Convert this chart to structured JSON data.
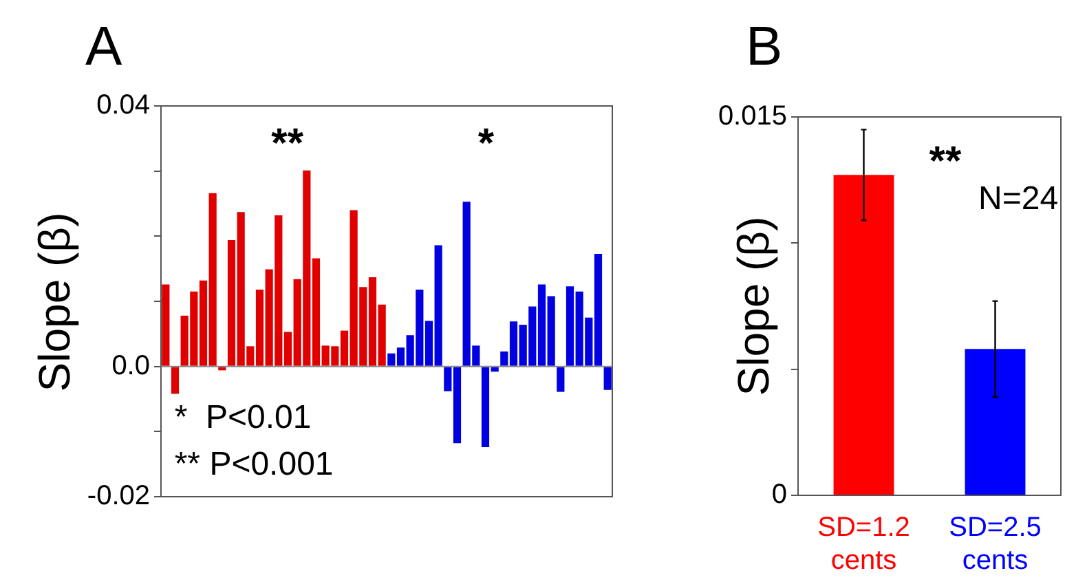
{
  "chart_data": [
    {
      "type": "bar",
      "title": "A",
      "ylabel": "Slope (β)",
      "categories": [
        null,
        null,
        null,
        null,
        null,
        null,
        null,
        null,
        null,
        null,
        null,
        null,
        null,
        null,
        null,
        null,
        null,
        null,
        null,
        null,
        null,
        null,
        null,
        null,
        null,
        null,
        null,
        null,
        null,
        null,
        null,
        null,
        null,
        null,
        null,
        null,
        null,
        null,
        null,
        null,
        null,
        null,
        null,
        null,
        null,
        null,
        null,
        null
      ],
      "values": [
        0.0126,
        -0.0042,
        0.0078,
        0.0115,
        0.0132,
        0.0266,
        -0.0006,
        0.0194,
        0.0237,
        0.0031,
        0.0118,
        0.0149,
        0.0232,
        0.0053,
        0.0134,
        0.0301,
        0.0166,
        0.0032,
        0.0031,
        0.0055,
        0.024,
        0.0122,
        0.0137,
        0.0095,
        0.002,
        0.0029,
        0.0048,
        0.0118,
        0.007,
        0.0186,
        -0.0038,
        -0.0118,
        0.0253,
        0.0032,
        -0.0124,
        -0.0008,
        0.0023,
        0.0069,
        0.0064,
        0.0092,
        0.0126,
        0.0108,
        -0.0039,
        0.0123,
        0.0115,
        0.0075,
        0.0173,
        -0.0036
      ],
      "colors": [
        "#e00000",
        "#e00000",
        "#e00000",
        "#e00000",
        "#e00000",
        "#e00000",
        "#e00000",
        "#e00000",
        "#e00000",
        "#e00000",
        "#e00000",
        "#e00000",
        "#e00000",
        "#e00000",
        "#e00000",
        "#e00000",
        "#e00000",
        "#e00000",
        "#e00000",
        "#e00000",
        "#e00000",
        "#e00000",
        "#e00000",
        "#e00000",
        "#0000e0",
        "#0000e0",
        "#0000e0",
        "#0000e0",
        "#0000e0",
        "#0000e0",
        "#0000e0",
        "#0000e0",
        "#0000e0",
        "#0000e0",
        "#0000e0",
        "#0000e0",
        "#0000e0",
        "#0000e0",
        "#0000e0",
        "#0000e0",
        "#0000e0",
        "#0000e0",
        "#0000e0",
        "#0000e0",
        "#0000e0",
        "#0000e0",
        "#0000e0",
        "#0000e0"
      ],
      "ylim": [
        -0.02,
        0.04
      ],
      "yticks": [
        -0.02,
        {
          "value": -0.01,
          "label": null
        },
        {
          "value": 0,
          "label": "0.0"
        },
        {
          "value": 0.01,
          "label": null
        },
        {
          "value": 0.02,
          "label": null
        },
        {
          "value": 0.03,
          "label": null
        },
        0.04
      ],
      "annotations": [
        "**",
        "*",
        "*  P<0.01",
        "** P<0.001"
      ]
    },
    {
      "type": "bar",
      "title": "B",
      "ylabel": "Slope (β)",
      "categories": [
        "SD=1.2 cents",
        "SD=2.5 cents"
      ],
      "values": [
        0.0127,
        0.0058
      ],
      "errors": [
        0.0018,
        0.0019
      ],
      "colors": [
        "#ff0000",
        "#0000ff"
      ],
      "ylim": [
        0,
        0.015
      ],
      "yticks": [
        0,
        {
          "value": 0.005,
          "label": null
        },
        {
          "value": 0.01,
          "label": null
        },
        0.015
      ],
      "annotations": [
        "**",
        "N=24"
      ]
    }
  ]
}
